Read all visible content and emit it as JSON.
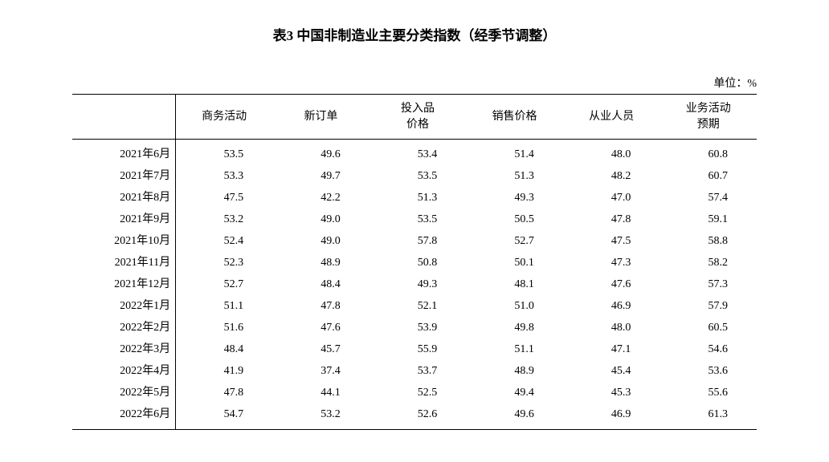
{
  "title": "表3 中国非制造业主要分类指数（经季节调整）",
  "unit_label": "单位：%",
  "table": {
    "type": "table",
    "background_color": "#ffffff",
    "text_color": "#000000",
    "border_color": "#000000",
    "title_fontsize": 17,
    "body_fontsize": 14,
    "columns": {
      "period": "",
      "business_activity": "商务活动",
      "new_orders": "新订单",
      "input_price_l1": "投入品",
      "input_price_l2": "价格",
      "sales_price": "销售价格",
      "employment": "从业人员",
      "expectation_l1": "业务活动",
      "expectation_l2": "预期"
    },
    "rows": [
      {
        "period": "2021年6月",
        "business_activity": "53.5",
        "new_orders": "49.6",
        "input_price": "53.4",
        "sales_price": "51.4",
        "employment": "48.0",
        "expectation": "60.8"
      },
      {
        "period": "2021年7月",
        "business_activity": "53.3",
        "new_orders": "49.7",
        "input_price": "53.5",
        "sales_price": "51.3",
        "employment": "48.2",
        "expectation": "60.7"
      },
      {
        "period": "2021年8月",
        "business_activity": "47.5",
        "new_orders": "42.2",
        "input_price": "51.3",
        "sales_price": "49.3",
        "employment": "47.0",
        "expectation": "57.4"
      },
      {
        "period": "2021年9月",
        "business_activity": "53.2",
        "new_orders": "49.0",
        "input_price": "53.5",
        "sales_price": "50.5",
        "employment": "47.8",
        "expectation": "59.1"
      },
      {
        "period": "2021年10月",
        "business_activity": "52.4",
        "new_orders": "49.0",
        "input_price": "57.8",
        "sales_price": "52.7",
        "employment": "47.5",
        "expectation": "58.8"
      },
      {
        "period": "2021年11月",
        "business_activity": "52.3",
        "new_orders": "48.9",
        "input_price": "50.8",
        "sales_price": "50.1",
        "employment": "47.3",
        "expectation": "58.2"
      },
      {
        "period": "2021年12月",
        "business_activity": "52.7",
        "new_orders": "48.4",
        "input_price": "49.3",
        "sales_price": "48.1",
        "employment": "47.6",
        "expectation": "57.3"
      },
      {
        "period": "2022年1月",
        "business_activity": "51.1",
        "new_orders": "47.8",
        "input_price": "52.1",
        "sales_price": "51.0",
        "employment": "46.9",
        "expectation": "57.9"
      },
      {
        "period": "2022年2月",
        "business_activity": "51.6",
        "new_orders": "47.6",
        "input_price": "53.9",
        "sales_price": "49.8",
        "employment": "48.0",
        "expectation": "60.5"
      },
      {
        "period": "2022年3月",
        "business_activity": "48.4",
        "new_orders": "45.7",
        "input_price": "55.9",
        "sales_price": "51.1",
        "employment": "47.1",
        "expectation": "54.6"
      },
      {
        "period": "2022年4月",
        "business_activity": "41.9",
        "new_orders": "37.4",
        "input_price": "53.7",
        "sales_price": "48.9",
        "employment": "45.4",
        "expectation": "53.6"
      },
      {
        "period": "2022年5月",
        "business_activity": "47.8",
        "new_orders": "44.1",
        "input_price": "52.5",
        "sales_price": "49.4",
        "employment": "45.3",
        "expectation": "55.6"
      },
      {
        "period": "2022年6月",
        "business_activity": "54.7",
        "new_orders": "53.2",
        "input_price": "52.6",
        "sales_price": "49.6",
        "employment": "46.9",
        "expectation": "61.3"
      }
    ]
  }
}
